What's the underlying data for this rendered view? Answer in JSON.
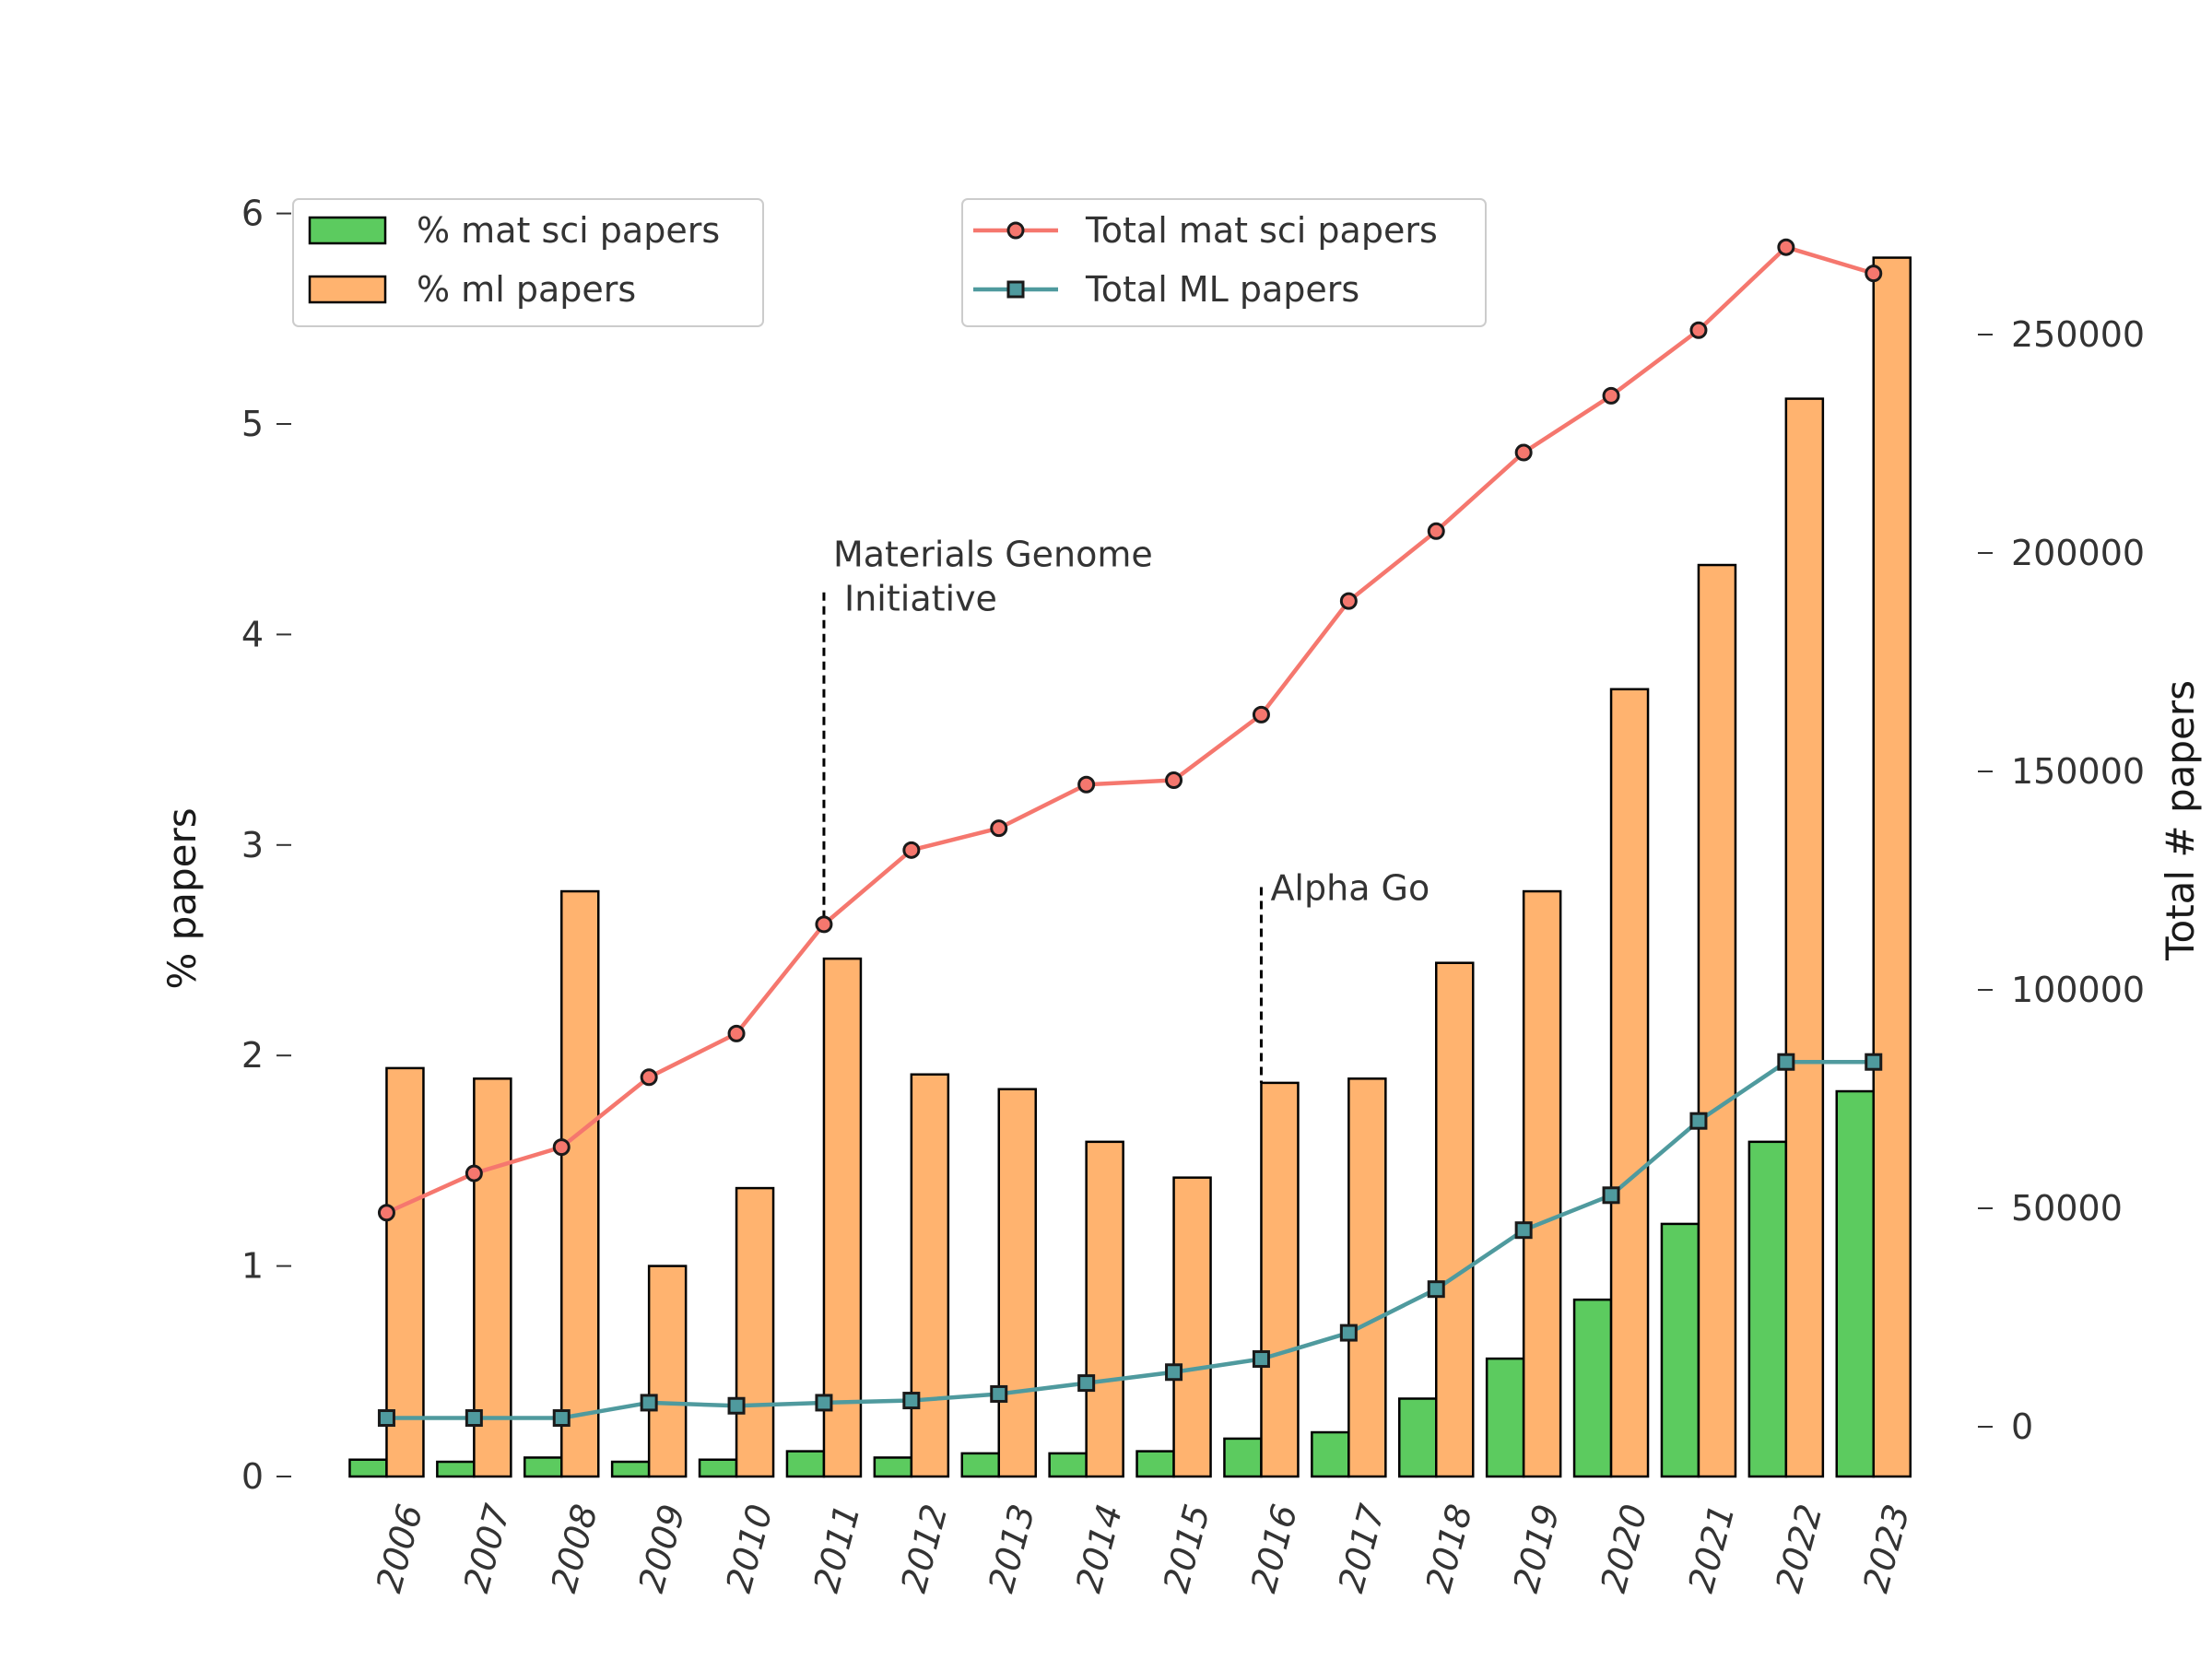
{
  "chart_data": {
    "type": "bar",
    "categories": [
      "2006",
      "2007",
      "2008",
      "2009",
      "2010",
      "2011",
      "2012",
      "2013",
      "2014",
      "2015",
      "2016",
      "2017",
      "2018",
      "2019",
      "2020",
      "2021",
      "2022",
      "2023"
    ],
    "bar_series": [
      {
        "name": "% mat sci papers",
        "color": "#5ccb5f",
        "values": [
          0.08,
          0.07,
          0.09,
          0.07,
          0.08,
          0.12,
          0.09,
          0.11,
          0.11,
          0.12,
          0.18,
          0.21,
          0.37,
          0.56,
          0.84,
          1.2,
          1.59,
          1.83
        ]
      },
      {
        "name": "% ml papers",
        "color": "#ffb36f",
        "values": [
          1.94,
          1.89,
          2.78,
          1.0,
          1.37,
          2.46,
          1.91,
          1.84,
          1.59,
          1.42,
          1.87,
          1.89,
          2.44,
          2.78,
          3.74,
          4.33,
          5.12,
          5.79
        ]
      }
    ],
    "line_series": [
      {
        "name": "Total mat sci papers",
        "color": "#f5776e",
        "marker": "circle",
        "values": [
          49000,
          58000,
          64000,
          80000,
          90000,
          115000,
          132000,
          137000,
          147000,
          148000,
          163000,
          189000,
          205000,
          223000,
          236000,
          251000,
          270000,
          264000
        ]
      },
      {
        "name": "Total ML papers",
        "color": "#4f9a9e",
        "marker": "square",
        "values": [
          2000,
          2000,
          2000,
          5500,
          4800,
          5500,
          6000,
          7500,
          10000,
          12500,
          15500,
          21500,
          31500,
          45000,
          53000,
          70000,
          83500,
          83500
        ]
      }
    ],
    "ylabel": "% papers",
    "y2label": "Total # papers",
    "ylim": [
      0,
      6.0
    ],
    "y2lim": [
      -11000,
      271000
    ],
    "yticks": [
      "0",
      "1",
      "2",
      "3",
      "4",
      "5",
      "6"
    ],
    "y2ticks": [
      "0",
      "50000",
      "100000",
      "150000",
      "200000",
      "250000"
    ],
    "annotations": [
      {
        "x": "2011",
        "line1": "Materials Genome",
        "line2": " Initiative",
        "y_top": 4.2
      },
      {
        "x": "2016",
        "line1": "Alpha Go",
        "line2": "",
        "y_top": 2.8
      }
    ],
    "legend_left": "top-left",
    "legend_right": "top-center",
    "grid": false,
    "xtick_rotation": -75
  }
}
